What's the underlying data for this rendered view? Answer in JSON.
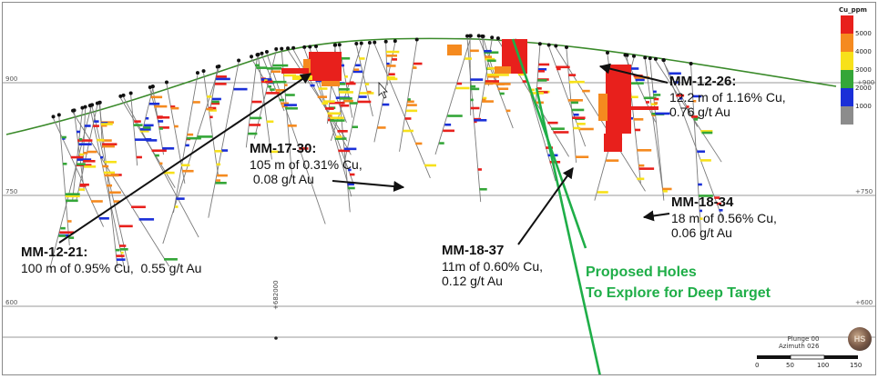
{
  "section": {
    "elevation_labels": {
      "left_900": "900",
      "left_750": "750",
      "right_750": "+750",
      "left_600": "600",
      "right_600": "+600",
      "right_900": "+900"
    },
    "northing_label": "+682000"
  },
  "legend": {
    "title": "Cu_ppm",
    "entries": [
      {
        "label": "5000",
        "color": "#e8201c"
      },
      {
        "label": "4000",
        "color": "#f58a1f"
      },
      {
        "label": "3000",
        "color": "#f7e11a"
      },
      {
        "label": "2000",
        "color": "#34a638"
      },
      {
        "label": "1000",
        "color": "#1a2fd8"
      },
      {
        "label": "",
        "color": "#8c8c8c"
      }
    ]
  },
  "callouts": [
    {
      "title": "MM-12-26:",
      "lines": [
        "12.2 m of 1.16% Cu,",
        "0.76 g/t Au"
      ]
    },
    {
      "title": "MM-17-30:",
      "lines": [
        "105 m of 0.31% Cu,",
        " 0.08 g/t Au"
      ]
    },
    {
      "title": "MM-18-34",
      "lines": [
        "18 m of 0.56% Cu,",
        "0.06 g/t Au"
      ]
    },
    {
      "title": "MM-12-21:",
      "lines": [
        "100 m of 0.95% Cu,  0.55 g/t Au"
      ]
    },
    {
      "title": "MM-18-37",
      "lines": [
        "11m of 0.60% Cu,",
        "0.12 g/t Au"
      ]
    }
  ],
  "proposed": {
    "line1": "Proposed Holes",
    "line2": "To Explore for  Deep Target",
    "color": "#1fae48"
  },
  "view_info": {
    "plunge": "Plunge 00",
    "azimuth": "Azimuth 026"
  },
  "scale_bar": {
    "ticks": [
      "0",
      "50",
      "100",
      "150"
    ]
  },
  "logo": {
    "text": "HS"
  }
}
